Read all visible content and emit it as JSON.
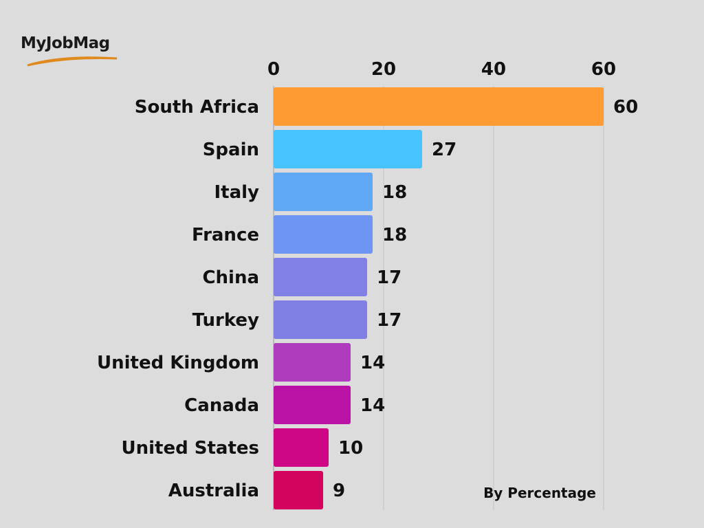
{
  "logo": {
    "text": "MyJobMag"
  },
  "chart_data": {
    "type": "bar",
    "orientation": "horizontal",
    "categories": [
      "South Africa",
      "Spain",
      "Italy",
      "France",
      "China",
      "Turkey",
      "United Kingdom",
      "Canada",
      "United States",
      "Australia"
    ],
    "values": [
      60,
      27,
      18,
      18,
      17,
      17,
      14,
      14,
      10,
      9
    ],
    "colors": [
      "#ff9b33",
      "#47c3ff",
      "#60a8f5",
      "#6d95f2",
      "#8080e6",
      "#7f7fe4",
      "#ae3cbd",
      "#bb12a6",
      "#cf0686",
      "#d4045e"
    ],
    "x_ticks": [
      0,
      20,
      40,
      60
    ],
    "xlim": [
      0,
      60
    ],
    "grid": true,
    "x_axis_position": "top",
    "annotation": "By Percentage",
    "title": "",
    "xlabel": "",
    "ylabel": ""
  }
}
